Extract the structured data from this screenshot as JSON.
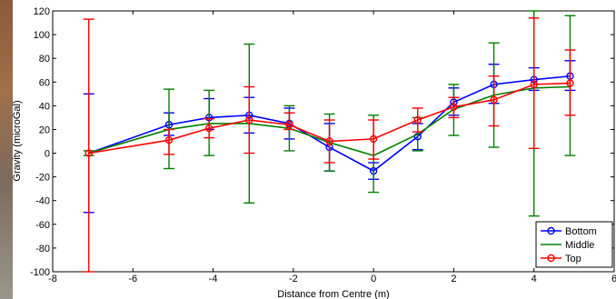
{
  "chart_data": {
    "type": "line",
    "title": "",
    "xlabel": "Distance from Centre (m)",
    "ylabel": "Gravity (microGal)",
    "xlim": [
      -8,
      6
    ],
    "ylim": [
      -100,
      120
    ],
    "xticks": [
      -8,
      -6,
      -4,
      -2,
      0,
      2,
      4,
      6
    ],
    "yticks": [
      -100,
      -80,
      -60,
      -40,
      -20,
      0,
      20,
      40,
      60,
      80,
      100,
      120
    ],
    "grid": false,
    "legend_position": "bottom-right",
    "series": [
      {
        "name": "Bottom",
        "color": "#0000ff",
        "marker": "circle",
        "x": [
          -7.1,
          -5.1,
          -4.1,
          -3.1,
          -2.1,
          -1.1,
          0,
          1.1,
          2,
          3,
          4,
          4.9
        ],
        "y": [
          0,
          24,
          30,
          32,
          25,
          5,
          -15,
          14,
          43,
          58,
          62,
          65
        ],
        "err_low": [
          -50,
          15,
          20,
          17,
          12,
          -15,
          -22,
          3,
          32,
          42,
          53,
          53
        ],
        "err_high": [
          50,
          34,
          46,
          47,
          38,
          25,
          -8,
          25,
          55,
          75,
          72,
          78
        ]
      },
      {
        "name": "Middle",
        "color": "#008000",
        "marker": "none",
        "x": [
          -7.1,
          -5.1,
          -4.1,
          -3.1,
          -2.1,
          -1.1,
          0,
          1.1,
          2,
          3,
          4,
          4.9
        ],
        "y": [
          0,
          20,
          25,
          25,
          21,
          9,
          -2,
          16,
          37,
          49,
          55,
          56
        ],
        "err_low": [
          -2,
          -13,
          -2,
          -42,
          2,
          -15,
          -33,
          2,
          15,
          5,
          -53,
          -2
        ],
        "err_high": [
          2,
          54,
          53,
          92,
          40,
          33,
          32,
          30,
          58,
          93,
          120,
          116
        ]
      },
      {
        "name": "Top",
        "color": "#ff0000",
        "marker": "circle",
        "x": [
          -7.1,
          -5.1,
          -4.1,
          -3.1,
          -2.1,
          -1.1,
          0,
          1.1,
          2,
          3,
          4,
          4.9
        ],
        "y": [
          0,
          11,
          21,
          28,
          24,
          10,
          12,
          28,
          39,
          45,
          58,
          59
        ],
        "err_low": [
          -100,
          -1,
          13,
          0,
          20,
          -8,
          -5,
          18,
          30,
          23,
          4,
          32
        ],
        "err_high": [
          113,
          20,
          29,
          56,
          34,
          28,
          28,
          38,
          47,
          65,
          114,
          87
        ]
      }
    ]
  }
}
